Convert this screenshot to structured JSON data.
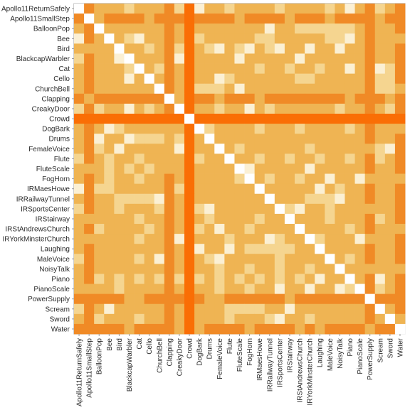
{
  "chart_data": {
    "type": "heatmap",
    "title": "",
    "xlabel": "",
    "ylabel": "",
    "labels": [
      "Apollo11ReturnSafely",
      "Apollo11SmallStep",
      "BalloonPop",
      "Bee",
      "Bird",
      "BlackcapWarbler",
      "Cat",
      "Cello",
      "ChurchBell",
      "Clapping",
      "CreakyDoor",
      "Crowd",
      "DogBark",
      "Drums",
      "FemaleVoice",
      "Flute",
      "FluteScale",
      "FogHorn",
      "IRMaesHowe",
      "IRRailwayTunnel",
      "IRSportsCenter",
      "IRStairway",
      "IRStAndrewsChurch",
      "IRYorkMinsterChurch",
      "Laughing",
      "MaleVoice",
      "NoisyTalk",
      "Piano",
      "PianoScale",
      "PowerSupply",
      "Scream",
      "Sword",
      "Water"
    ],
    "dissimilarity": [
      3,
      4,
      3,
      3,
      3,
      3,
      3,
      3,
      3,
      4,
      3,
      5,
      3,
      3,
      3,
      3,
      3,
      3,
      3,
      3,
      3,
      3,
      3,
      3,
      3,
      3,
      3,
      3,
      3,
      4,
      3,
      3,
      4
    ],
    "diagonal": 0,
    "value_range": [
      0,
      5
    ],
    "colors": [
      "#ffffff",
      "#fbf0d4",
      "#f5d590",
      "#efb453",
      "#f08a26",
      "#fa6e05"
    ]
  }
}
